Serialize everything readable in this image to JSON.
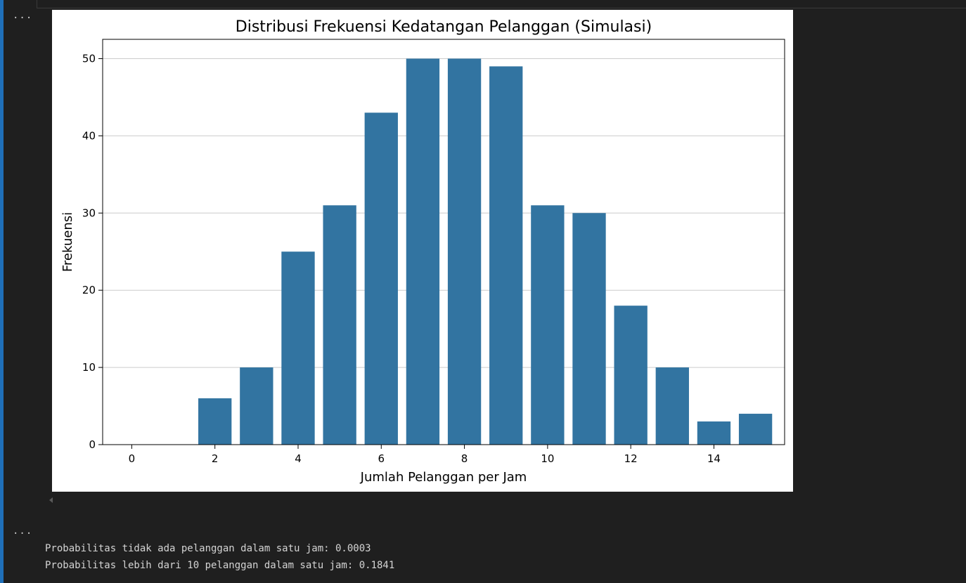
{
  "cell": {
    "output_marker_1": "...",
    "output_marker_2": "...",
    "lines": [
      "Probabilitas tidak ada pelanggan dalam satu jam: 0.0003",
      "Probabilitas lebih dari 10 pelanggan dalam satu jam: 0.1841"
    ]
  },
  "colors": {
    "bar": "#3274a1",
    "grid": "#cccccc",
    "background": "#1f1f1f",
    "text": "#d4d4d4"
  },
  "chart_data": {
    "type": "bar",
    "title": "Distribusi Frekuensi Kedatangan Pelanggan (Simulasi)",
    "xlabel": "Jumlah Pelanggan per Jam",
    "ylabel": "Frekuensi",
    "categories": [
      0,
      1,
      2,
      3,
      4,
      5,
      6,
      7,
      8,
      9,
      10,
      11,
      12,
      13,
      14,
      15
    ],
    "values": [
      0,
      0,
      6,
      10,
      25,
      31,
      43,
      50,
      50,
      49,
      31,
      30,
      18,
      10,
      3,
      4
    ],
    "xticks": [
      0,
      2,
      4,
      6,
      8,
      10,
      12,
      14
    ],
    "yticks": [
      0,
      10,
      20,
      30,
      40,
      50
    ],
    "ylim": [
      0,
      52.5
    ],
    "grid": "y",
    "legend": "none"
  }
}
